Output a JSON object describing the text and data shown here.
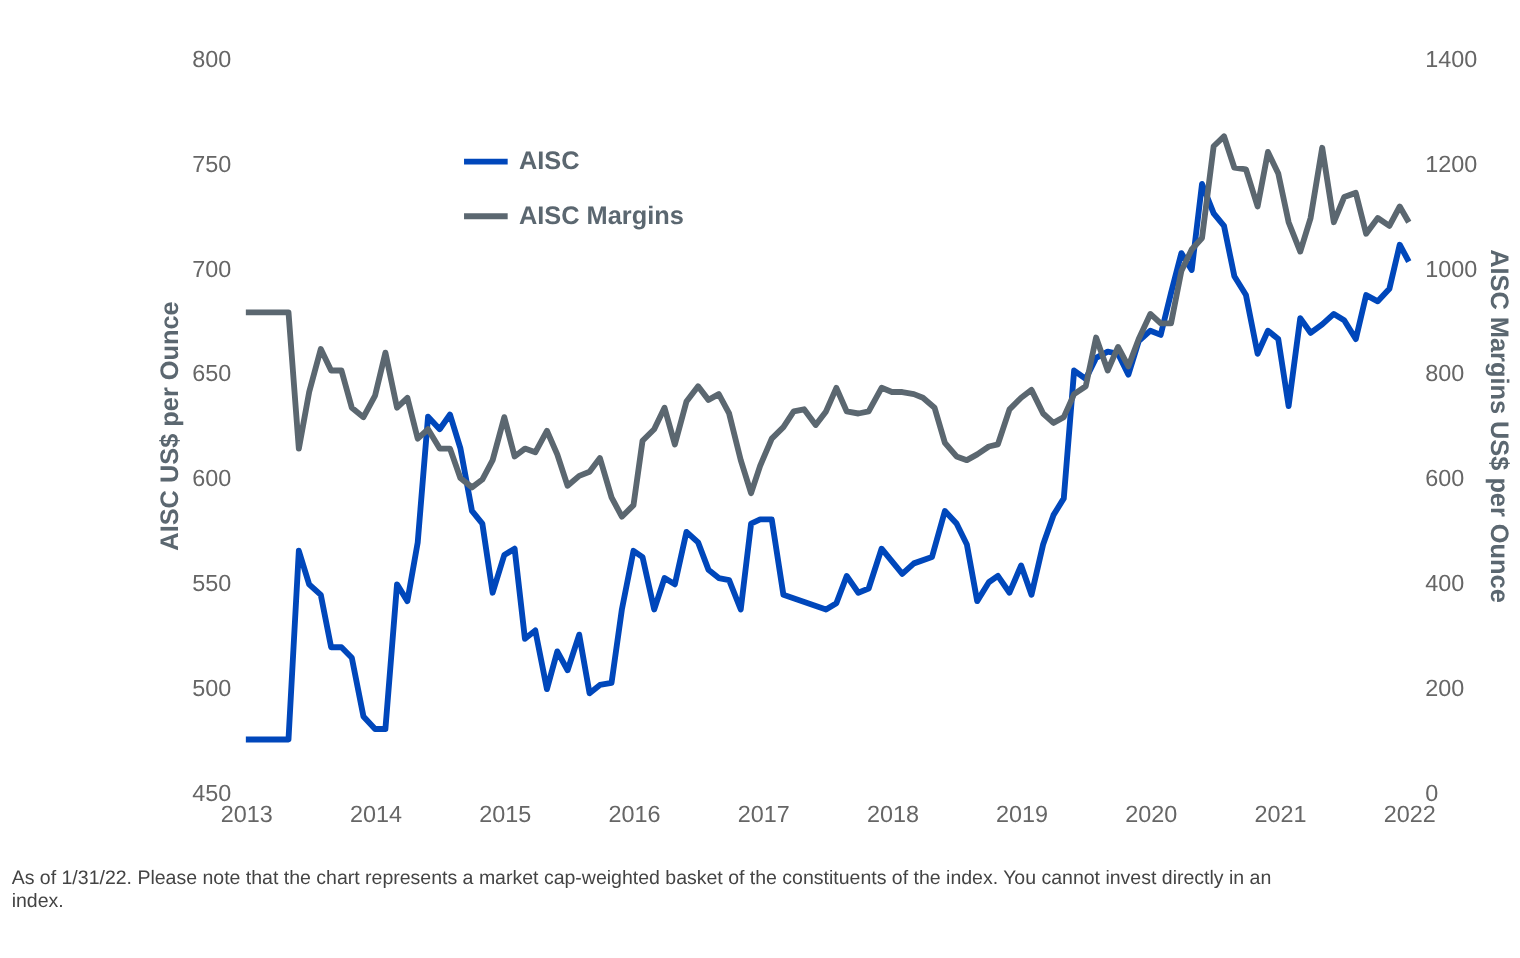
{
  "chart_data": {
    "type": "line",
    "ylabel": "AISC US$ per Ounce",
    "y2label": "AISC Margins US$ per Ounce",
    "xlim": [
      2013,
      2022
    ],
    "xticks": [
      2013,
      2014,
      2015,
      2016,
      2017,
      2018,
      2019,
      2020,
      2021,
      2022
    ],
    "ylim": [
      450,
      800
    ],
    "yticks": [
      450,
      500,
      550,
      600,
      650,
      700,
      750,
      800
    ],
    "y2lim": [
      0,
      1400
    ],
    "y2ticks": [
      0,
      200,
      400,
      600,
      800,
      1000,
      1200,
      1400
    ],
    "grid": false,
    "legend": "top left",
    "marker": "none",
    "line_style": "solid",
    "series": [
      {
        "name": "AISC",
        "color": "#0047bb",
        "x": [
          2013.0,
          2013.33,
          2013.41,
          2013.49,
          2013.58,
          2013.66,
          2013.74,
          2013.82,
          2013.91,
          2014.0,
          2014.08,
          2014.17,
          2014.25,
          2014.33,
          2014.41,
          2014.5,
          2014.58,
          2014.66,
          2014.75,
          2014.83,
          2014.91,
          2015.0,
          2015.08,
          2015.16,
          2015.24,
          2015.33,
          2015.41,
          2015.49,
          2015.58,
          2015.66,
          2015.74,
          2015.83,
          2015.91,
          2016.0,
          2016.07,
          2016.16,
          2016.24,
          2016.32,
          2016.41,
          2016.5,
          2016.58,
          2016.66,
          2016.74,
          2016.83,
          2016.91,
          2016.98,
          2017.07,
          2017.16,
          2017.49,
          2017.57,
          2017.65,
          2017.74,
          2017.82,
          2017.92,
          2018.08,
          2018.17,
          2018.31,
          2018.41,
          2018.5,
          2018.58,
          2018.66,
          2018.75,
          2018.82,
          2018.91,
          2019.0,
          2019.08,
          2019.17,
          2019.25,
          2019.33,
          2019.41,
          2019.5,
          2019.58,
          2019.67,
          2019.75,
          2019.83,
          2019.91,
          2020.0,
          2020.08,
          2020.16,
          2020.24,
          2020.32,
          2020.4,
          2020.49,
          2020.57,
          2020.65,
          2020.74,
          2020.83,
          2020.91,
          2020.99,
          2021.07,
          2021.16,
          2021.24,
          2021.33,
          2021.42,
          2021.5,
          2021.59,
          2021.67,
          2021.76,
          2021.85,
          2021.93,
          2022.0
        ],
        "values": [
          475,
          475,
          565,
          549,
          544,
          519,
          519,
          514,
          486,
          480,
          480,
          549,
          541,
          569,
          629,
          623,
          630,
          614,
          584,
          578,
          545,
          563,
          566,
          523,
          527,
          499,
          517,
          508,
          525,
          497,
          501,
          502,
          537,
          565,
          562,
          537,
          552,
          549,
          574,
          569,
          556,
          552,
          551,
          537,
          578,
          580,
          580,
          544,
          537,
          540,
          553,
          545,
          547,
          566,
          554,
          559,
          562,
          584,
          578,
          568,
          541,
          550,
          553,
          545,
          558,
          544,
          568,
          582,
          590,
          651,
          647,
          657,
          660,
          659,
          649,
          665,
          670,
          668,
          688,
          707,
          699,
          740,
          726,
          720,
          696,
          687,
          659,
          670,
          666,
          634,
          676,
          669,
          673,
          678,
          675,
          666,
          687,
          684,
          690,
          711,
          703
        ]
      },
      {
        "name": "AISC Margins",
        "color": "#5b6770",
        "axis": "y2",
        "x": [
          2013.0,
          2013.33,
          2013.41,
          2013.49,
          2013.58,
          2013.66,
          2013.74,
          2013.82,
          2013.91,
          2014.0,
          2014.08,
          2014.17,
          2014.25,
          2014.33,
          2014.41,
          2014.5,
          2014.58,
          2014.66,
          2014.75,
          2014.83,
          2014.91,
          2015.0,
          2015.08,
          2015.16,
          2015.24,
          2015.33,
          2015.41,
          2015.49,
          2015.58,
          2015.66,
          2015.74,
          2015.83,
          2015.91,
          2016.0,
          2016.07,
          2016.16,
          2016.24,
          2016.32,
          2016.41,
          2016.5,
          2016.58,
          2016.66,
          2016.74,
          2016.83,
          2016.91,
          2016.98,
          2017.07,
          2017.16,
          2017.24,
          2017.32,
          2017.41,
          2017.49,
          2017.57,
          2017.65,
          2017.74,
          2017.82,
          2017.92,
          2018.0,
          2018.08,
          2018.17,
          2018.24,
          2018.33,
          2018.41,
          2018.5,
          2018.58,
          2018.66,
          2018.75,
          2018.82,
          2018.91,
          2019.0,
          2019.08,
          2019.17,
          2019.25,
          2019.33,
          2019.41,
          2019.5,
          2019.58,
          2019.67,
          2019.75,
          2019.83,
          2019.91,
          2020.0,
          2020.08,
          2020.16,
          2020.24,
          2020.32,
          2020.4,
          2020.49,
          2020.57,
          2020.65,
          2020.74,
          2020.83,
          2020.91,
          2020.99,
          2021.07,
          2021.16,
          2021.24,
          2021.33,
          2021.42,
          2021.5,
          2021.59,
          2021.67,
          2021.76,
          2021.85,
          2021.93,
          2022.0
        ],
        "values": [
          915,
          915,
          655,
          763,
          845,
          804,
          804,
          733,
          715,
          756,
          838,
          733,
          752,
          674,
          692,
          655,
          655,
          599,
          581,
          596,
          633,
          715,
          640,
          655,
          648,
          689,
          644,
          584,
          603,
          611,
          637,
          562,
          525,
          547,
          670,
          692,
          733,
          663,
          745,
          774,
          748,
          759,
          722,
          633,
          570,
          622,
          674,
          696,
          726,
          730,
          700,
          726,
          771,
          726,
          722,
          726,
          771,
          763,
          763,
          759,
          752,
          733,
          666,
          640,
          633,
          644,
          659,
          663,
          730,
          752,
          767,
          722,
          704,
          715,
          759,
          774,
          867,
          804,
          849,
          812,
          864,
          912,
          894,
          894,
          994,
          1035,
          1057,
          1232,
          1251,
          1191,
          1188,
          1117,
          1221,
          1180,
          1087,
          1031,
          1095,
          1229,
          1087,
          1135,
          1143,
          1065,
          1095,
          1080,
          1117,
          1087
        ]
      }
    ],
    "annotations": [
      "As of 1/31/22. Please note that the chart represents a market cap-weighted basket of the constituents of the index. You cannot invest directly in an index."
    ]
  }
}
